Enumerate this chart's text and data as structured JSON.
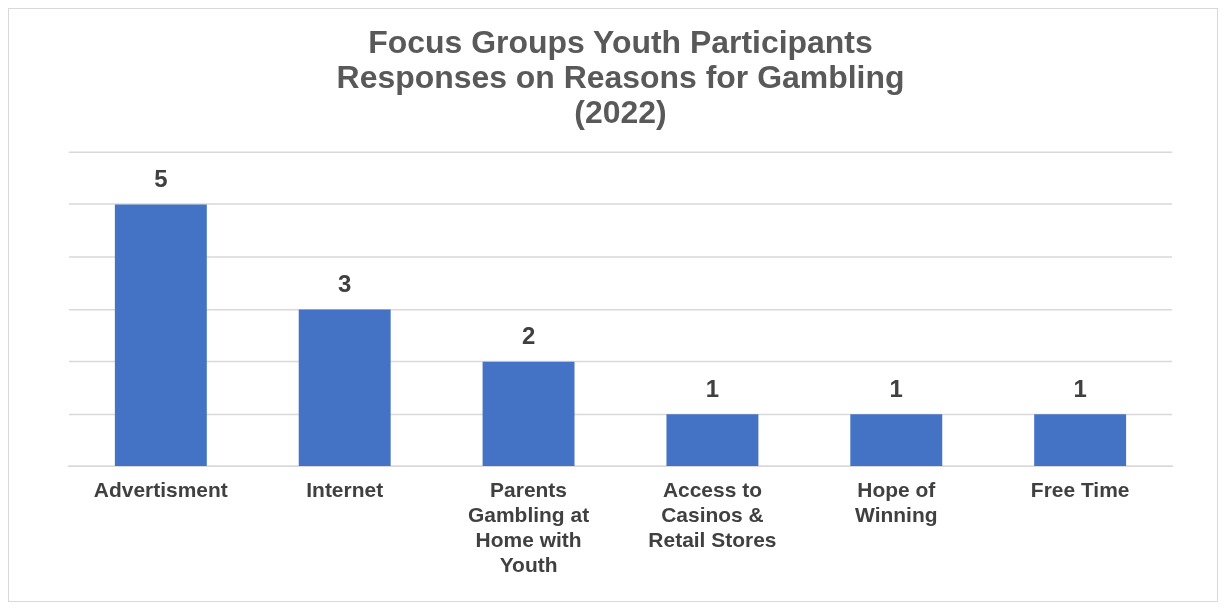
{
  "chart_data": {
    "type": "bar",
    "title": "Focus Groups Youth Participants Responses on Reasons for Gambling (2022)",
    "categories": [
      "Advertisment",
      "Internet",
      "Parents Gambling at Home with Youth",
      "Access to Casinos & Retail Stores",
      "Hope of Winning",
      "Free Time"
    ],
    "values": [
      5,
      3,
      2,
      1,
      1,
      1
    ],
    "color": "#4472c4",
    "ylim": [
      0,
      6
    ],
    "yticks": [
      0,
      1,
      2,
      3,
      4,
      5,
      6
    ],
    "grid": "y",
    "tick_labels": "x",
    "data_labels": true,
    "legend": false
  }
}
